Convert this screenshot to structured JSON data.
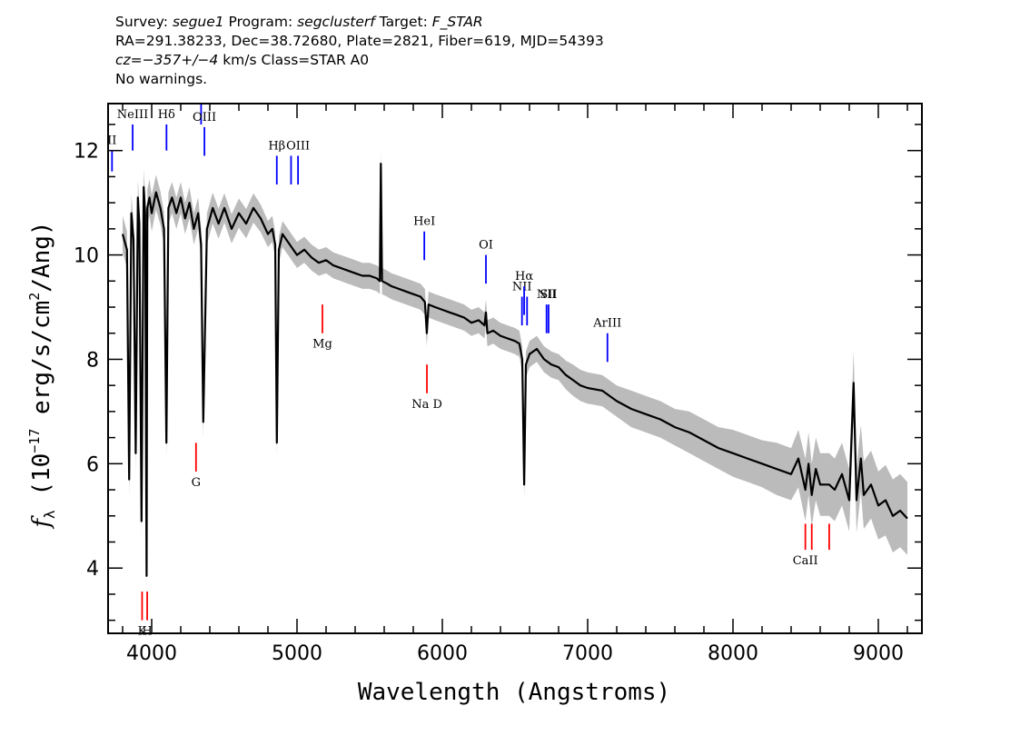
{
  "header": {
    "line1": {
      "survey_label": "Survey: ",
      "survey": "segue1",
      "program_label": " Program: ",
      "program": "segclusterf",
      "target_label": " Target: ",
      "target": "F_STAR"
    },
    "line2": "RA=291.38233, Dec=38.72680, Plate=2821, Fiber=619, MJD=54393",
    "line3": {
      "cz": "cz=−357+/−4",
      "rest": " km/s Class=STAR A0"
    },
    "line4": "No warnings."
  },
  "colors": {
    "emission": "#0000ff",
    "absorption": "#ff0000",
    "spectrum": "#000000",
    "error_band": "#bbbbbb"
  },
  "chart_data": {
    "type": "line",
    "xlabel": "Wavelength (Angstroms)",
    "ylabel": {
      "base": "f",
      "sub": "λ",
      "text1": " (10",
      "sup1": "−17",
      "text2": " erg/s/cm",
      "sup2": "2",
      "text3": "/Ang)"
    },
    "xlim": [
      3700,
      9300
    ],
    "ylim": [
      2.75,
      12.9
    ],
    "xticks": [
      4000,
      5000,
      6000,
      7000,
      8000,
      9000
    ],
    "yticks": [
      4,
      6,
      8,
      10,
      12
    ],
    "xminor_step": 200,
    "yminor_step": 0.5,
    "series": [
      {
        "kind": "spectrum",
        "x": [
          3800,
          3830,
          3845,
          3860,
          3875,
          3890,
          3905,
          3915,
          3930,
          3945,
          3955,
          3965,
          3970,
          3985,
          4000,
          4030,
          4060,
          4085,
          4101,
          4115,
          4140,
          4170,
          4200,
          4230,
          4260,
          4290,
          4320,
          4340,
          4355,
          4380,
          4420,
          4460,
          4500,
          4550,
          4600,
          4650,
          4700,
          4750,
          4800,
          4830,
          4850,
          4861,
          4875,
          4900,
          4950,
          5000,
          5050,
          5100,
          5150,
          5200,
          5250,
          5300,
          5350,
          5400,
          5450,
          5500,
          5550,
          5570,
          5577,
          5585,
          5620,
          5650,
          5700,
          5750,
          5800,
          5850,
          5880,
          5893,
          5905,
          5950,
          6000,
          6050,
          6100,
          6150,
          6200,
          6250,
          6290,
          6300,
          6310,
          6350,
          6400,
          6450,
          6500,
          6530,
          6550,
          6563,
          6575,
          6600,
          6650,
          6700,
          6750,
          6800,
          6850,
          6900,
          6950,
          7000,
          7100,
          7200,
          7300,
          7400,
          7500,
          7600,
          7700,
          7800,
          7900,
          8000,
          8100,
          8200,
          8300,
          8400,
          8450,
          8498,
          8520,
          8542,
          8570,
          8600,
          8662,
          8700,
          8750,
          8800,
          8830,
          8850,
          8880,
          8900,
          8950,
          9000,
          9050,
          9100,
          9150,
          9200
        ],
        "y": [
          10.4,
          10.1,
          5.7,
          10.8,
          10.3,
          6.2,
          11.1,
          10.6,
          4.9,
          11.3,
          10.8,
          3.85,
          10.9,
          11.1,
          10.8,
          11.2,
          10.9,
          10.5,
          6.4,
          10.9,
          11.1,
          10.8,
          11.1,
          10.7,
          11.0,
          10.5,
          10.8,
          10.2,
          6.8,
          10.5,
          10.9,
          10.6,
          10.9,
          10.5,
          10.8,
          10.6,
          10.9,
          10.7,
          10.4,
          10.5,
          10.2,
          6.4,
          10.1,
          10.4,
          10.2,
          10.0,
          10.1,
          9.95,
          9.85,
          9.9,
          9.8,
          9.75,
          9.7,
          9.65,
          9.6,
          9.6,
          9.55,
          9.5,
          11.75,
          9.5,
          9.45,
          9.4,
          9.35,
          9.3,
          9.25,
          9.2,
          9.1,
          8.5,
          9.05,
          9.0,
          8.95,
          8.9,
          8.85,
          8.8,
          8.7,
          8.75,
          8.65,
          8.9,
          8.5,
          8.55,
          8.45,
          8.4,
          8.35,
          8.3,
          8.0,
          5.6,
          7.9,
          8.1,
          8.2,
          8.0,
          7.9,
          7.85,
          7.7,
          7.6,
          7.5,
          7.45,
          7.4,
          7.2,
          7.05,
          6.95,
          6.85,
          6.7,
          6.6,
          6.45,
          6.3,
          6.2,
          6.1,
          6.0,
          5.9,
          5.8,
          6.1,
          5.5,
          6.0,
          5.4,
          5.9,
          5.6,
          5.6,
          5.5,
          5.8,
          5.3,
          7.55,
          5.3,
          6.1,
          5.4,
          5.6,
          5.2,
          5.3,
          5.0,
          5.1,
          4.95
        ]
      },
      {
        "kind": "error_band",
        "x": [
          3800,
          3900,
          4000,
          4100,
          4200,
          4300,
          4400,
          4500,
          4600,
          4700,
          4800,
          4900,
          5000,
          5100,
          5200,
          5300,
          5400,
          5500,
          5600,
          5700,
          5800,
          5900,
          6000,
          6100,
          6200,
          6300,
          6400,
          6500,
          6600,
          6700,
          6800,
          6900,
          7000,
          7100,
          7200,
          7300,
          7400,
          7500,
          7600,
          7700,
          7800,
          7900,
          8000,
          8100,
          8200,
          8300,
          8400,
          8500,
          8600,
          8700,
          8800,
          8900,
          9000,
          9100,
          9200
        ],
        "y": [
          0.35,
          0.35,
          0.35,
          0.3,
          0.3,
          0.3,
          0.3,
          0.28,
          0.28,
          0.28,
          0.25,
          0.25,
          0.25,
          0.25,
          0.25,
          0.25,
          0.25,
          0.25,
          0.25,
          0.25,
          0.25,
          0.25,
          0.25,
          0.25,
          0.25,
          0.25,
          0.25,
          0.25,
          0.25,
          0.25,
          0.25,
          0.3,
          0.3,
          0.3,
          0.3,
          0.35,
          0.35,
          0.35,
          0.35,
          0.4,
          0.4,
          0.4,
          0.45,
          0.45,
          0.45,
          0.5,
          0.5,
          0.6,
          0.6,
          0.6,
          0.6,
          0.65,
          0.65,
          0.7,
          0.7
        ]
      }
    ],
    "emission_lines": [
      {
        "label": "II",
        "x": 3727,
        "y_top": 12.0,
        "y_bottom": 11.6
      },
      {
        "label": "NeIII",
        "x": 3869,
        "y_top": 12.5,
        "y_bottom": 12.0
      },
      {
        "label": "Hδ",
        "x": 4102,
        "y_top": 12.5,
        "y_bottom": 12.0
      },
      {
        "label": "",
        "x": 4340,
        "y_top": 12.9,
        "y_bottom": 12.5
      },
      {
        "label": "OIII",
        "x": 4363,
        "y_top": 12.45,
        "y_bottom": 11.9
      },
      {
        "label": "Hβ",
        "x": 4861,
        "y_top": 11.9,
        "y_bottom": 11.35
      },
      {
        "label": "",
        "x": 4959,
        "y_top": 11.9,
        "y_bottom": 11.35
      },
      {
        "label": "OIII",
        "x": 5007,
        "y_top": 11.9,
        "y_bottom": 11.35
      },
      {
        "label": "HeI",
        "x": 5876,
        "y_top": 10.45,
        "y_bottom": 9.9
      },
      {
        "label": "OI",
        "x": 6300,
        "y_top": 10.0,
        "y_bottom": 9.45
      },
      {
        "label": "NII",
        "x": 6548,
        "y_top": 9.2,
        "y_bottom": 8.65
      },
      {
        "label": "Hα",
        "x": 6563,
        "y_top": 9.4,
        "y_bottom": 8.85
      },
      {
        "label": "",
        "x": 6583,
        "y_top": 9.2,
        "y_bottom": 8.65
      },
      {
        "label": "NII",
        "x": 6717,
        "y_top": 9.05,
        "y_bottom": 8.5
      },
      {
        "label": "SII",
        "x": 6731,
        "y_top": 9.05,
        "y_bottom": 8.5
      },
      {
        "label": "ArIII",
        "x": 7136,
        "y_top": 8.5,
        "y_bottom": 7.95
      }
    ],
    "absorption_lines": [
      {
        "label": "K",
        "x": 3934,
        "y_top": 3.55,
        "y_bottom": 3.0
      },
      {
        "label": "H",
        "x": 3969,
        "y_top": 3.55,
        "y_bottom": 3.0
      },
      {
        "label": "G",
        "x": 4305,
        "y_top": 6.4,
        "y_bottom": 5.85
      },
      {
        "label": "Mg",
        "x": 5175,
        "y_top": 9.05,
        "y_bottom": 8.5
      },
      {
        "label": "Na D",
        "x": 5894,
        "y_top": 7.9,
        "y_bottom": 7.35
      },
      {
        "label": "CaII",
        "x": 8498,
        "y_top": 4.85,
        "y_bottom": 4.35
      },
      {
        "label": "",
        "x": 8542,
        "y_top": 4.85,
        "y_bottom": 4.35
      },
      {
        "label": "",
        "x": 8662,
        "y_top": 4.85,
        "y_bottom": 4.35
      }
    ]
  }
}
